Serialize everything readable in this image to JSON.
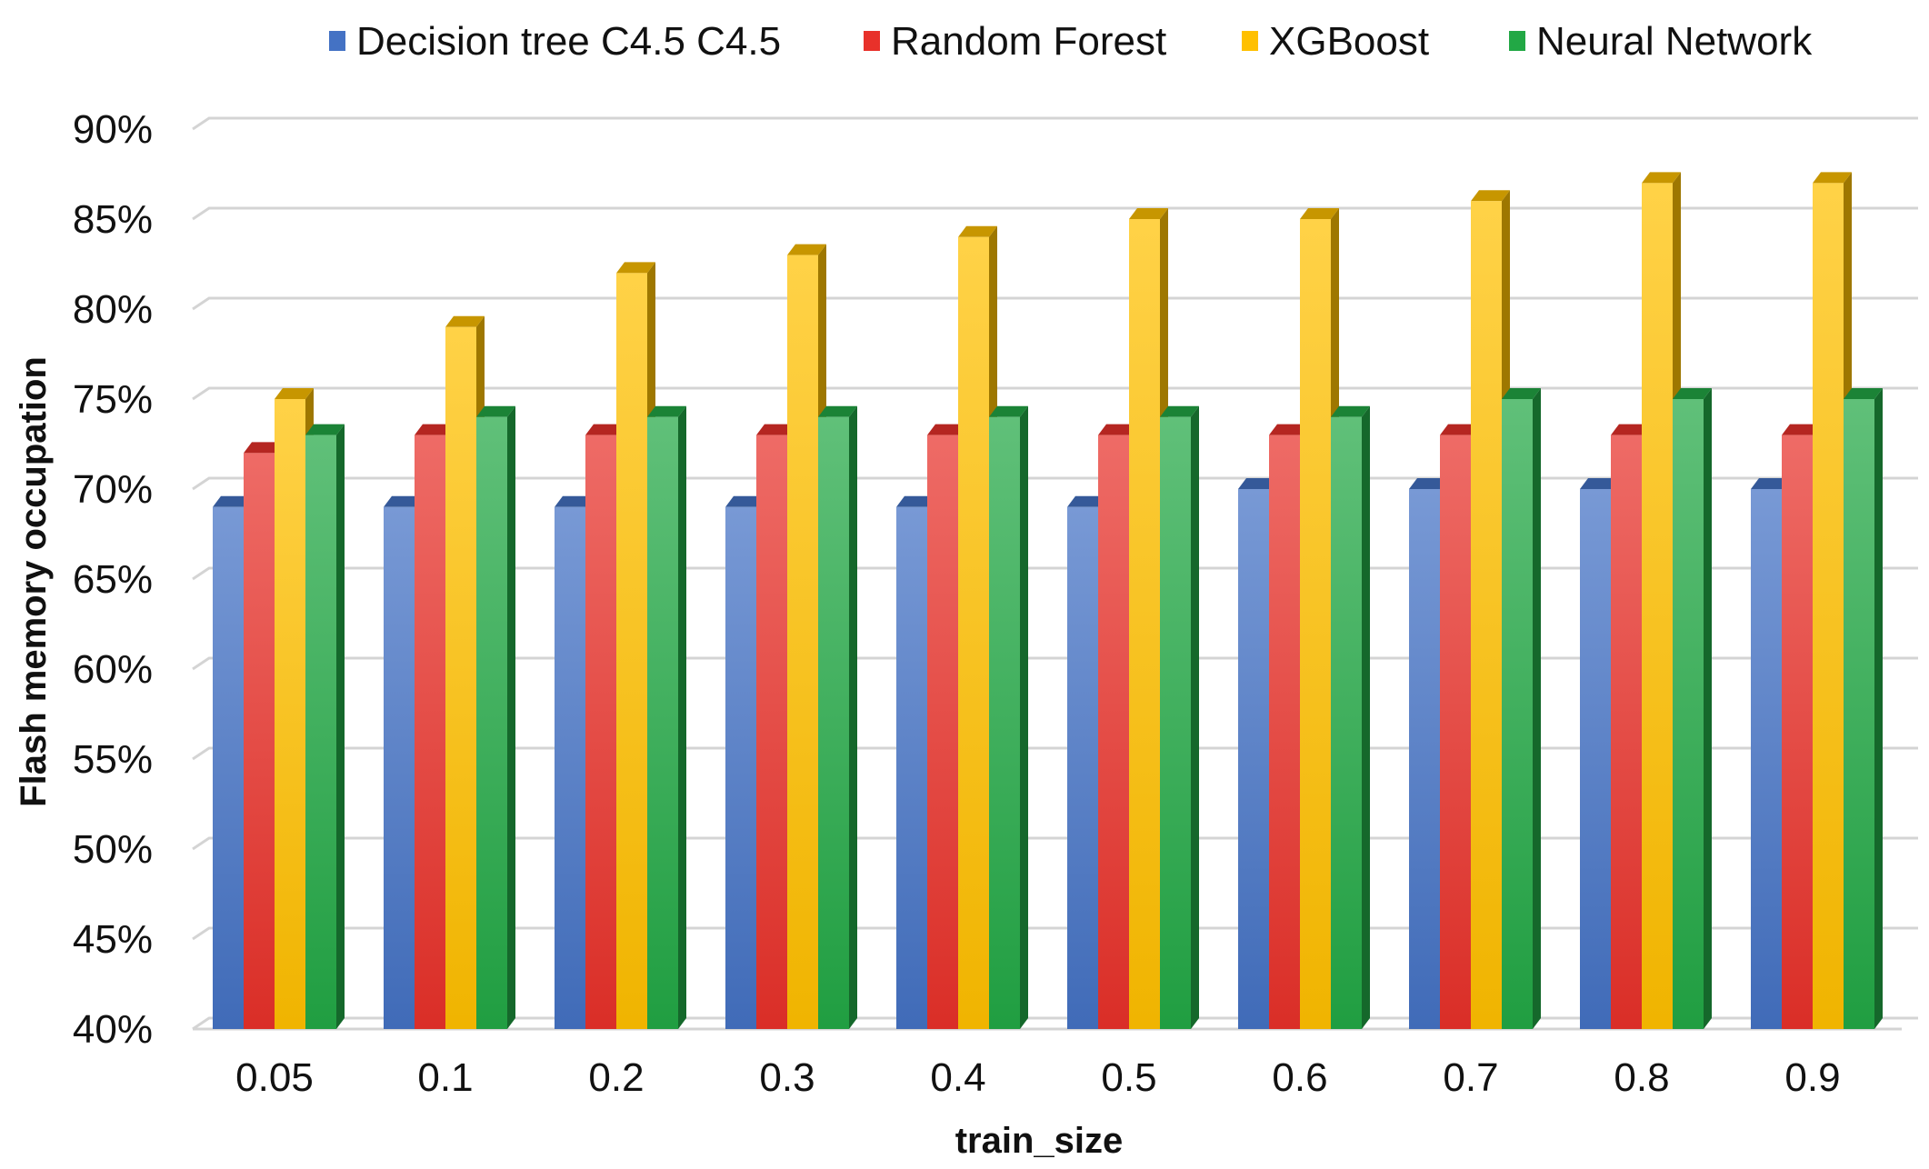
{
  "chart_data": {
    "type": "bar",
    "title": "",
    "xlabel": "train_size",
    "ylabel": "Flash memory occupation",
    "categories": [
      "0.05",
      "0.1",
      "0.2",
      "0.3",
      "0.4",
      "0.5",
      "0.6",
      "0.7",
      "0.8",
      "0.9"
    ],
    "y_ticks": [
      "40%",
      "45%",
      "50%",
      "55%",
      "60%",
      "65%",
      "70%",
      "75%",
      "80%",
      "85%",
      "90%"
    ],
    "ylim": [
      40,
      90
    ],
    "grid": true,
    "legend_position": "top",
    "series": [
      {
        "name": "Decision tree C4.5 C4.5",
        "color": "#4472c4",
        "values": [
          69,
          69,
          69,
          69,
          69,
          69,
          70,
          70,
          70,
          70
        ]
      },
      {
        "name": "Random Forest",
        "color": "#e8312a",
        "values": [
          72,
          73,
          73,
          73,
          73,
          73,
          73,
          73,
          73,
          73
        ]
      },
      {
        "name": "XGBoost",
        "color": "#ffc000",
        "values": [
          75,
          79,
          82,
          83,
          84,
          85,
          85,
          86,
          87,
          87
        ]
      },
      {
        "name": "Neural Network",
        "color": "#22a845",
        "values": [
          73,
          74,
          74,
          74,
          74,
          74,
          74,
          75,
          75,
          75
        ]
      }
    ]
  }
}
